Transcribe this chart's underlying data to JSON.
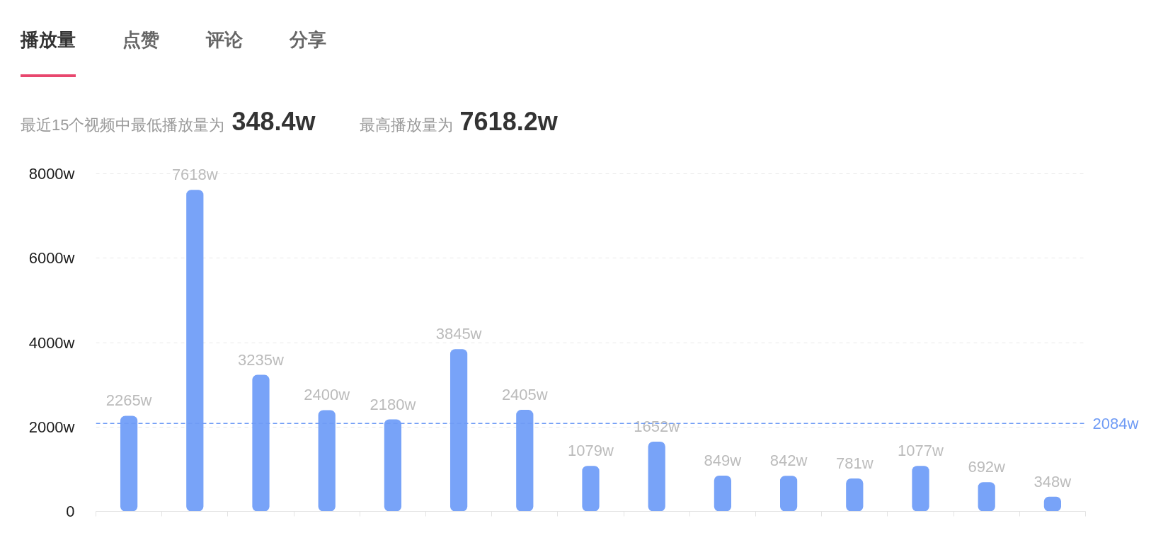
{
  "chart_data": {
    "type": "bar",
    "annotations": [
      "播放量",
      "点赞",
      "评论",
      "分享",
      "最近15个视频中最低播放量为",
      "348.4w",
      "最高播放量为",
      "7618.2w"
    ],
    "categories": [
      null,
      null,
      null,
      null,
      null,
      null,
      null,
      null,
      null,
      null,
      null,
      null,
      null,
      null,
      null
    ],
    "values": [
      2265,
      7618,
      3235,
      2400,
      2180,
      3845,
      2405,
      1079,
      1652,
      849,
      842,
      781,
      1077,
      692,
      348
    ],
    "value_labels": [
      "2265w",
      "7618w",
      "3235w",
      "2400w",
      "2180w",
      "3845w",
      "2405w",
      "1079w",
      "1652w",
      "849w",
      "842w",
      "781w",
      "1077w",
      "692w",
      "348w"
    ],
    "color": "#78a3f8",
    "ylim": [
      0,
      8000
    ],
    "yticks": [
      0,
      {
        "value": 2000,
        "label": "2000w"
      },
      {
        "value": 4000,
        "label": "4000w"
      },
      {
        "value": 6000,
        "label": "6000w"
      },
      {
        "value": 8000,
        "label": "8000w"
      }
    ],
    "grid": "y",
    "tick_labels": "y",
    "ref_lines": [
      {
        "axis": "y",
        "value": 2084,
        "label": "2084w",
        "color": "#6f9bf5",
        "line_style": "dashed"
      }
    ]
  }
}
